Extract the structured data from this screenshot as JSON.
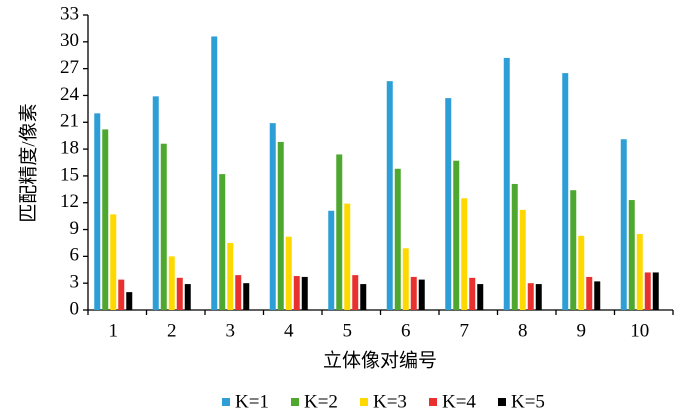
{
  "chart_data": {
    "type": "bar",
    "y_label": "匹配精度/像素",
    "x_label": "立体像对编号",
    "categories": [
      "1",
      "2",
      "3",
      "4",
      "5",
      "6",
      "7",
      "8",
      "9",
      "10"
    ],
    "series": [
      {
        "name": "K=1",
        "color": "#2e9fd6",
        "values": [
          22.0,
          23.9,
          30.6,
          20.9,
          11.1,
          25.6,
          23.7,
          28.2,
          26.5,
          19.1
        ]
      },
      {
        "name": "K=2",
        "color": "#4ea72e",
        "values": [
          20.2,
          18.6,
          15.2,
          18.8,
          17.4,
          15.8,
          16.7,
          14.1,
          13.4,
          12.3
        ]
      },
      {
        "name": "K=3",
        "color": "#ffd800",
        "values": [
          10.7,
          6.0,
          7.5,
          8.2,
          11.9,
          6.9,
          12.5,
          11.2,
          8.3,
          8.5
        ]
      },
      {
        "name": "K=4",
        "color": "#e8312f",
        "values": [
          3.4,
          3.6,
          3.9,
          3.8,
          3.9,
          3.7,
          3.6,
          3.0,
          3.7,
          4.2
        ]
      },
      {
        "name": "K=5",
        "color": "#000000",
        "values": [
          2.0,
          2.9,
          3.0,
          3.7,
          2.9,
          3.4,
          2.9,
          2.9,
          3.2,
          4.2
        ]
      }
    ],
    "ylim": [
      0,
      33
    ],
    "yticks": [
      0,
      3,
      6,
      9,
      12,
      15,
      18,
      21,
      24,
      27,
      30,
      33
    ],
    "legend": "bottom"
  }
}
